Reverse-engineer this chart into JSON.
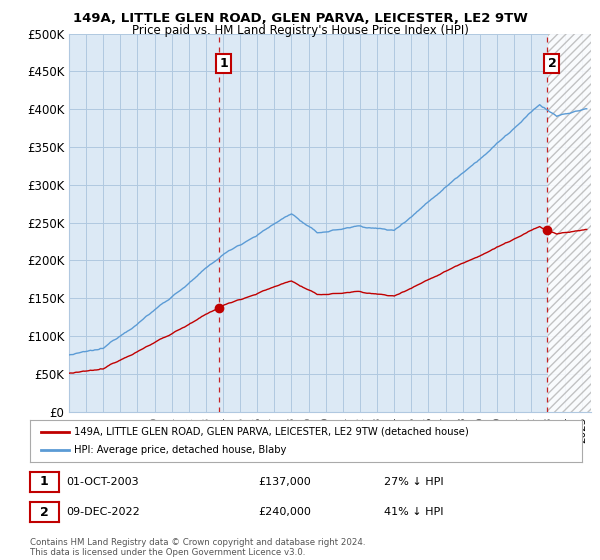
{
  "title": "149A, LITTLE GLEN ROAD, GLEN PARVA, LEICESTER, LE2 9TW",
  "subtitle": "Price paid vs. HM Land Registry's House Price Index (HPI)",
  "ylim": [
    0,
    500000
  ],
  "yticks": [
    0,
    50000,
    100000,
    150000,
    200000,
    250000,
    300000,
    350000,
    400000,
    450000,
    500000
  ],
  "ytick_labels": [
    "£0",
    "£50K",
    "£100K",
    "£150K",
    "£200K",
    "£250K",
    "£300K",
    "£350K",
    "£400K",
    "£450K",
    "£500K"
  ],
  "hpi_color": "#5b9bd5",
  "price_color": "#c00000",
  "legend_line1": "149A, LITTLE GLEN ROAD, GLEN PARVA, LEICESTER, LE2 9TW (detached house)",
  "legend_line2": "HPI: Average price, detached house, Blaby",
  "footnote": "Contains HM Land Registry data © Crown copyright and database right 2024.\nThis data is licensed under the Open Government Licence v3.0.",
  "background_color": "#ffffff",
  "chart_bg_color": "#dce9f5",
  "grid_color": "#b0c8e0",
  "sale1_year": 2003.75,
  "sale1_price": 137000,
  "sale2_year": 2022.92,
  "sale2_price": 240000,
  "sale1_label": "1",
  "sale2_label": "2",
  "sale1_date": "01-OCT-2003",
  "sale2_date": "09-DEC-2022",
  "sale1_hpi_pct": "27% ↓ HPI",
  "sale2_hpi_pct": "41% ↓ HPI"
}
